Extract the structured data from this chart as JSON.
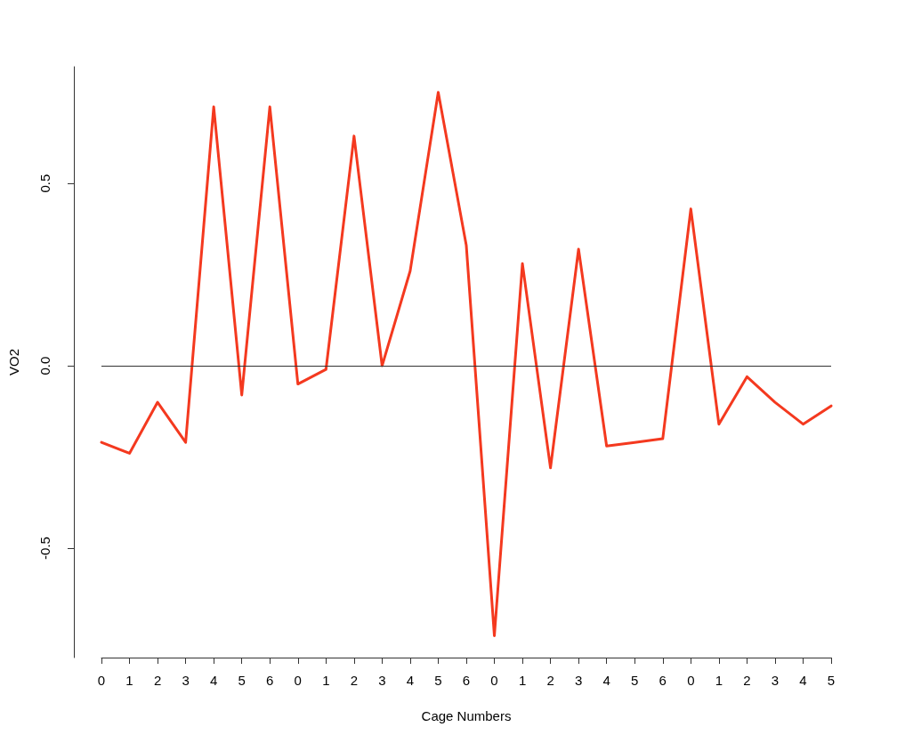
{
  "chart_data": {
    "type": "line",
    "xlabel": "Cage Numbers",
    "ylabel": "VO2",
    "categories": [
      "0",
      "1",
      "2",
      "3",
      "4",
      "5",
      "6",
      "0",
      "1",
      "2",
      "3",
      "4",
      "5",
      "6",
      "0",
      "1",
      "2",
      "3",
      "4",
      "5",
      "6",
      "0",
      "1",
      "2",
      "3",
      "4",
      "5"
    ],
    "series": [
      {
        "color": "#f4391f",
        "values": [
          -0.21,
          -0.24,
          -0.1,
          -0.21,
          0.71,
          -0.08,
          0.71,
          -0.05,
          -0.01,
          0.63,
          0.0,
          0.26,
          0.75,
          0.33,
          -0.74,
          0.28,
          -0.28,
          0.32,
          -0.22,
          -0.21,
          -0.2,
          0.43,
          -0.16,
          -0.03,
          -0.1,
          -0.16,
          -0.11
        ]
      }
    ],
    "ylim": [
      -0.8,
      0.82
    ],
    "yticks": [
      -0.5,
      {
        "value": 0,
        "label": "0.0"
      },
      0.5
    ],
    "ref_lines": [
      {
        "axis": "y",
        "value": 0,
        "color": "#333333"
      }
    ],
    "marker": "none"
  }
}
